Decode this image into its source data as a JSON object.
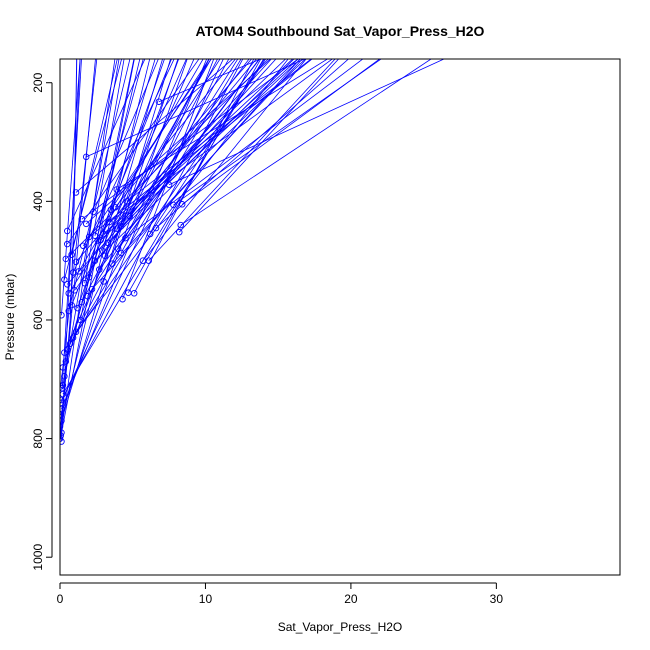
{
  "chart_data": {
    "type": "scatter",
    "title": "ATOM4 Southbound Sat_Vapor_Press_H2O",
    "xlabel": "Sat_Vapor_Press_H2O",
    "ylabel": "Pressure (mbar)",
    "xlim": [
      0,
      38.5
    ],
    "ylim": [
      1030,
      160
    ],
    "y_reversed": true,
    "x_ticks": [
      0,
      10,
      20,
      30
    ],
    "y_ticks": [
      200,
      400,
      600,
      800,
      1000
    ],
    "grid": false,
    "legend": "none",
    "series": [
      {
        "mode": "lines",
        "points": [
          [
            0.05,
            800
          ],
          [
            0.1,
            760
          ],
          [
            0.3,
            720
          ],
          [
            0.5,
            660
          ],
          [
            0.7,
            600
          ],
          [
            0.8,
            540
          ],
          [
            0.9,
            470
          ],
          [
            1.0,
            380
          ],
          [
            1.05,
            300
          ],
          [
            1.1,
            240
          ],
          [
            1.15,
            160
          ]
        ]
      },
      {
        "mode": "points",
        "points": [
          [
            0.1,
            805
          ],
          [
            0.0,
            800
          ],
          [
            0.05,
            795
          ],
          [
            0.1,
            790
          ],
          [
            0.0,
            780
          ],
          [
            0.1,
            770
          ],
          [
            0.05,
            760
          ],
          [
            0.1,
            750
          ],
          [
            0.05,
            740
          ],
          [
            0.1,
            735
          ],
          [
            0.2,
            725
          ],
          [
            0.15,
            715
          ],
          [
            0.05,
            712
          ],
          [
            0.2,
            710
          ],
          [
            0.3,
            695
          ],
          [
            0.2,
            680
          ],
          [
            0.4,
            670
          ],
          [
            0.3,
            655
          ],
          [
            0.5,
            650
          ],
          [
            0.7,
            640
          ],
          [
            0.9,
            630
          ],
          [
            1.1,
            620
          ],
          [
            0.1,
            592
          ],
          [
            1.4,
            600
          ],
          [
            0.6,
            585
          ],
          [
            1.2,
            580
          ],
          [
            0.8,
            575
          ],
          [
            1.5,
            570
          ],
          [
            1.9,
            560
          ],
          [
            0.6,
            555
          ],
          [
            1.0,
            550
          ],
          [
            2.2,
            548
          ],
          [
            0.5,
            540
          ],
          [
            1.7,
            538
          ],
          [
            3.0,
            535
          ],
          [
            0.3,
            532
          ],
          [
            2.0,
            528
          ],
          [
            0.9,
            520
          ],
          [
            1.3,
            518
          ],
          [
            2.7,
            515
          ],
          [
            3.6,
            505
          ],
          [
            1.1,
            502
          ],
          [
            2.4,
            500
          ],
          [
            0.4,
            497
          ],
          [
            3.1,
            492
          ],
          [
            0.8,
            490
          ],
          [
            4.2,
            487
          ],
          [
            2.9,
            483
          ],
          [
            4.0,
            480
          ],
          [
            1.6,
            475
          ],
          [
            0.5,
            472
          ],
          [
            3.3,
            470
          ],
          [
            2.6,
            466
          ],
          [
            4.5,
            462
          ],
          [
            2.0,
            460
          ],
          [
            2.4,
            458
          ],
          [
            6.2,
            455
          ],
          [
            8.2,
            452
          ],
          [
            0.5,
            450
          ],
          [
            3.9,
            446
          ],
          [
            6.6,
            445
          ],
          [
            4.2,
            442
          ],
          [
            8.3,
            440
          ],
          [
            1.8,
            438
          ],
          [
            3.4,
            435
          ],
          [
            1.5,
            430
          ],
          [
            4.8,
            425
          ],
          [
            2.3,
            418
          ],
          [
            3.5,
            414
          ],
          [
            3.8,
            410
          ],
          [
            8.4,
            405
          ],
          [
            7.8,
            406
          ],
          [
            4.6,
            400
          ],
          [
            1.1,
            385
          ],
          [
            3.9,
            380
          ],
          [
            7.5,
            372
          ],
          [
            1.8,
            325
          ],
          [
            6.8,
            232
          ],
          [
            4.3,
            565
          ],
          [
            5.1,
            555
          ],
          [
            4.7,
            554
          ],
          [
            5.7,
            500
          ],
          [
            6.1,
            500
          ],
          [
            3.3,
            470
          ],
          [
            3.0,
            455
          ],
          [
            2.8,
            465
          ]
        ]
      }
    ]
  }
}
